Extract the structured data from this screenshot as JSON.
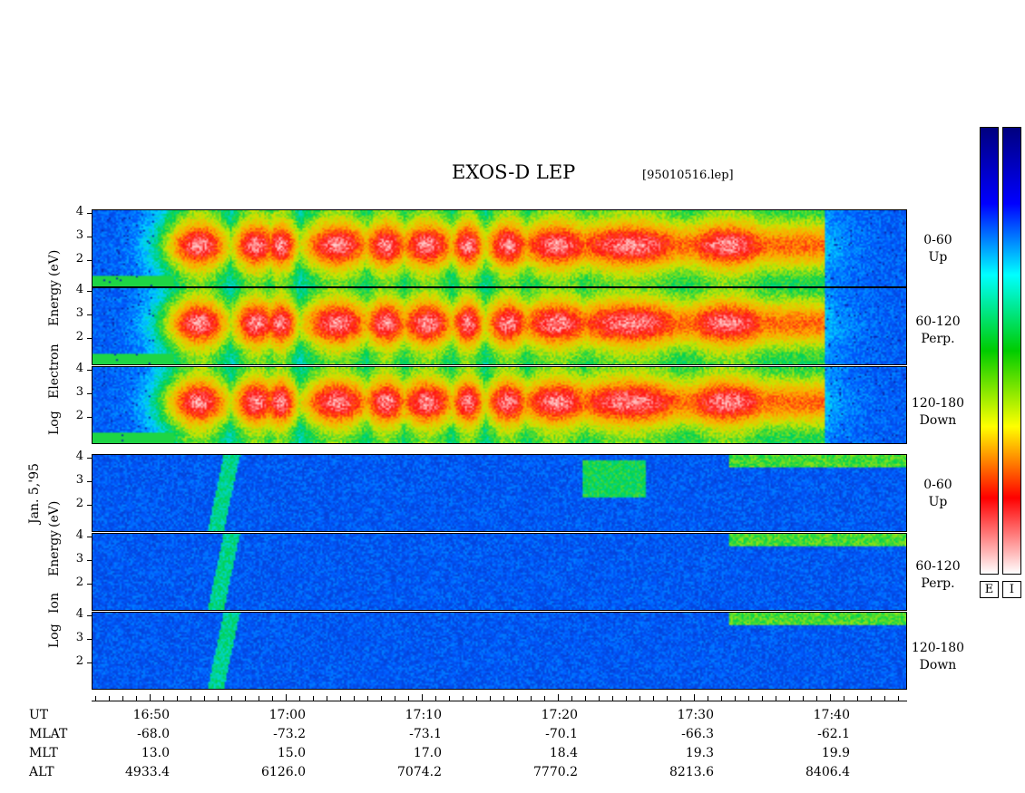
{
  "title": "EXOS-D LEP",
  "file": "[95010516.lep]",
  "electron_label": [
    "Log",
    "Electron",
    "Energy"
  ],
  "ion_label": [
    "Log",
    "Ion",
    "Energy"
  ],
  "ev_unit": "(eV)",
  "date_label": "Jan. 5,'95",
  "pitch_labels": [
    {
      "range": "0-60",
      "dir": "Up"
    },
    {
      "range": "60-120",
      "dir": "Perp."
    },
    {
      "range": "120-180",
      "dir": "Down"
    }
  ],
  "colorbars": {
    "electron": "E",
    "ion": "I"
  },
  "colors": {
    "scale": [
      "#ffffff",
      "#ff0000",
      "#ffff00",
      "#00cc00",
      "#00ffff",
      "#0000ff",
      "#00007f"
    ],
    "background": "#0a2aa8"
  },
  "chart_data": {
    "type": "heatmap",
    "panels": [
      {
        "species": "Electron",
        "pitch": "0-60 Up"
      },
      {
        "species": "Electron",
        "pitch": "60-120 Perp."
      },
      {
        "species": "Electron",
        "pitch": "120-180 Down"
      },
      {
        "species": "Ion",
        "pitch": "0-60 Up"
      },
      {
        "species": "Ion",
        "pitch": "60-120 Perp."
      },
      {
        "species": "Ion",
        "pitch": "120-180 Down"
      }
    ],
    "yticks": [
      "4",
      "3",
      "2"
    ],
    "ylim": [
      1,
      4
    ],
    "xlim_minutes": [
      16.75,
      17.75
    ],
    "xlabel_rows": [
      "UT",
      "MLAT",
      "MLT",
      "ALT"
    ],
    "ticks": [
      {
        "UT": "16:50",
        "MLAT": "-68.0",
        "MLT": "13.0",
        "ALT": "4933.4"
      },
      {
        "UT": "17:00",
        "MLAT": "-73.2",
        "MLT": "15.0",
        "ALT": "6126.0"
      },
      {
        "UT": "17:10",
        "MLAT": "-73.1",
        "MLT": "17.0",
        "ALT": "7074.2"
      },
      {
        "UT": "17:20",
        "MLAT": "-70.1",
        "MLT": "18.4",
        "ALT": "7770.2"
      },
      {
        "UT": "17:30",
        "MLAT": "-66.3",
        "MLT": "19.3",
        "ALT": "8213.6"
      },
      {
        "UT": "17:40",
        "MLAT": "-62.1",
        "MLT": "19.9",
        "ALT": "8406.4"
      }
    ]
  }
}
